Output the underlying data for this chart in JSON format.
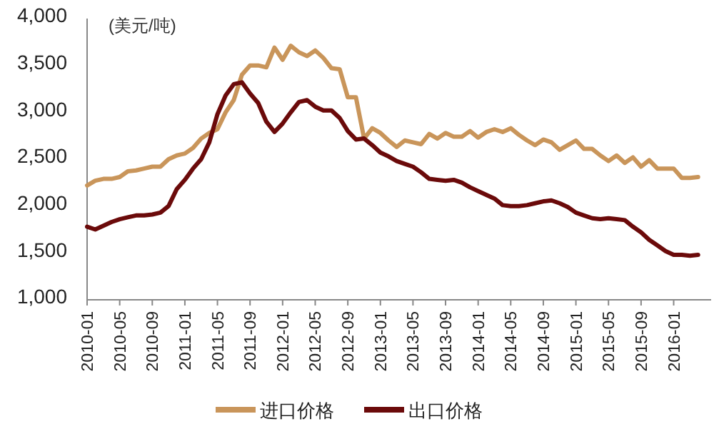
{
  "chart_data": {
    "type": "line",
    "ylabel": "(美元/吨)",
    "categories": [
      "2010-01",
      null,
      null,
      null,
      "2010-05",
      null,
      null,
      null,
      "2010-09",
      null,
      null,
      null,
      "2011-01",
      null,
      null,
      null,
      "2011-05",
      null,
      null,
      null,
      "2011-09",
      null,
      null,
      null,
      "2012-01",
      null,
      null,
      null,
      "2012-05",
      null,
      null,
      null,
      "2012-09",
      null,
      null,
      null,
      "2013-01",
      null,
      null,
      null,
      "2013-05",
      null,
      null,
      null,
      "2013-09",
      null,
      null,
      null,
      "2014-01",
      null,
      null,
      null,
      "2014-05",
      null,
      null,
      null,
      "2014-09",
      null,
      null,
      null,
      "2015-01",
      null,
      null,
      null,
      "2015-05",
      null,
      null,
      null,
      "2015-09",
      null,
      null,
      null,
      "2016-01",
      null,
      null,
      null
    ],
    "series": [
      {
        "name": "进口价格",
        "color": "#c9955a",
        "values": [
          2220,
          2270,
          2290,
          2290,
          2310,
          2370,
          2380,
          2400,
          2420,
          2420,
          2500,
          2540,
          2560,
          2620,
          2720,
          2780,
          2820,
          3000,
          3130,
          3400,
          3500,
          3500,
          3480,
          3690,
          3560,
          3710,
          3640,
          3600,
          3660,
          3580,
          3470,
          3460,
          3160,
          3160,
          2720,
          2830,
          2780,
          2700,
          2630,
          2700,
          2680,
          2660,
          2770,
          2720,
          2780,
          2740,
          2740,
          2800,
          2730,
          2790,
          2820,
          2790,
          2830,
          2760,
          2700,
          2650,
          2710,
          2680,
          2600,
          2650,
          2700,
          2610,
          2610,
          2540,
          2480,
          2540,
          2460,
          2520,
          2420,
          2490,
          2400,
          2400,
          2400,
          2300,
          2300,
          2310
        ]
      },
      {
        "name": "出口价格",
        "color": "#6b0a0a",
        "values": [
          1780,
          1750,
          1790,
          1830,
          1860,
          1880,
          1900,
          1900,
          1910,
          1930,
          2000,
          2180,
          2280,
          2400,
          2500,
          2680,
          2980,
          3180,
          3300,
          3320,
          3200,
          3100,
          2900,
          2790,
          2880,
          3000,
          3110,
          3130,
          3060,
          3020,
          3020,
          2940,
          2800,
          2710,
          2720,
          2650,
          2570,
          2530,
          2480,
          2450,
          2420,
          2360,
          2290,
          2280,
          2270,
          2280,
          2250,
          2200,
          2160,
          2120,
          2080,
          2010,
          2000,
          2000,
          2010,
          2030,
          2050,
          2060,
          2030,
          1990,
          1930,
          1900,
          1870,
          1860,
          1870,
          1860,
          1850,
          1780,
          1720,
          1640,
          1580,
          1520,
          1480,
          1480,
          1470,
          1480
        ]
      }
    ],
    "ylim": [
      1000,
      4000
    ],
    "yticks": [
      {
        "value": 1000,
        "label": "1,000"
      },
      {
        "value": 1500,
        "label": "1,500"
      },
      {
        "value": 2000,
        "label": "2,000"
      },
      {
        "value": 2500,
        "label": "2,500"
      },
      {
        "value": 3000,
        "label": "3,000"
      },
      {
        "value": 3500,
        "label": "3,500"
      },
      {
        "value": 4000,
        "label": "4,000"
      }
    ],
    "grid": false,
    "legend": "bottom",
    "line_style": "solid",
    "marker": "none"
  }
}
